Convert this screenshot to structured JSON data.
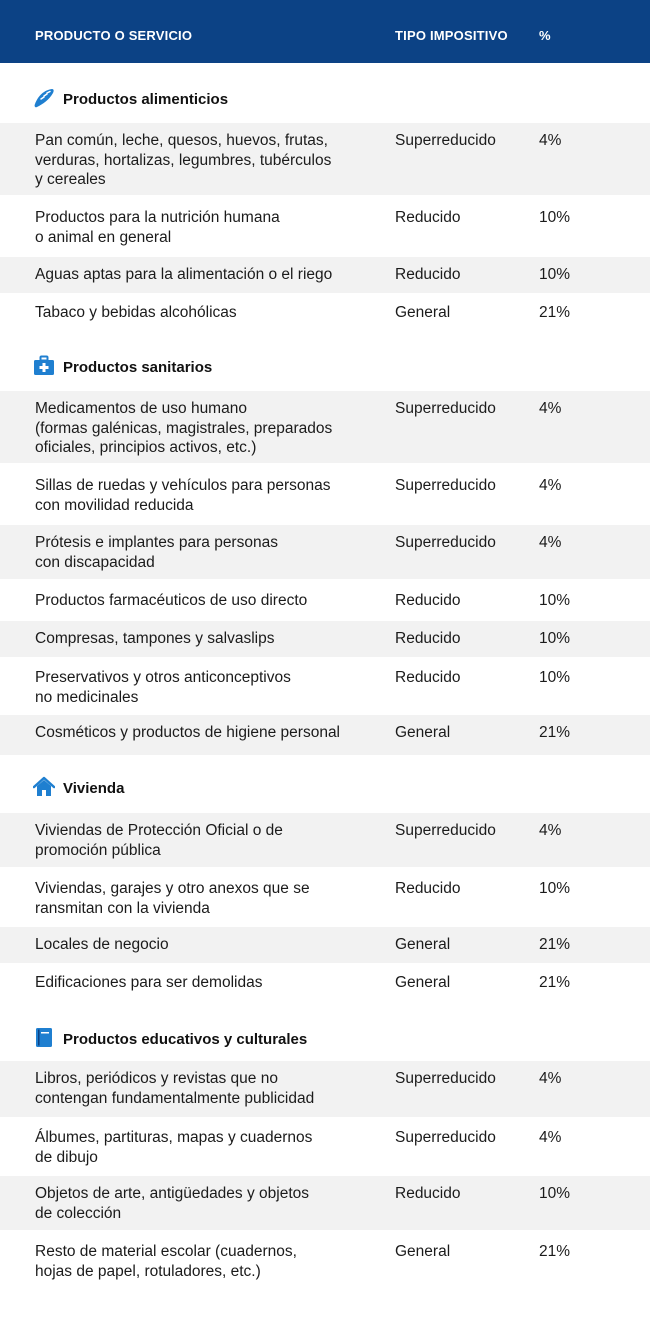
{
  "header": {
    "col1": "PRODUCTO O SERVICIO",
    "col2": "TIPO IMPOSITIVO",
    "col3": "%"
  },
  "colors": {
    "header_bg": "#0c4285",
    "icon": "#1f7fd0",
    "shade": "#f2f2f2"
  },
  "sections": [
    {
      "title": "Productos alimenticios",
      "icon": "baguette-icon",
      "rows": [
        {
          "product": "Pan común, leche, quesos, huevos, frutas,\nverduras, hortalizas, legumbres, tubérculos\ny cereales",
          "type": "Superreducido",
          "pct": "4%"
        },
        {
          "product": "Productos para la nutrición humana\no animal en general",
          "type": "Reducido",
          "pct": "10%"
        },
        {
          "product": "Aguas aptas para la alimentación o el riego",
          "type": "Reducido",
          "pct": "10%"
        },
        {
          "product": "Tabaco y bebidas alcohólicas",
          "type": "General",
          "pct": "21%"
        }
      ]
    },
    {
      "title": "Productos sanitarios",
      "icon": "medical-kit-icon",
      "rows": [
        {
          "product": "Medicamentos de uso humano\n(formas galénicas, magistrales, preparados\noficiales, principios activos, etc.)",
          "type": "Superreducido",
          "pct": "4%"
        },
        {
          "product": "Sillas de ruedas y vehículos para personas\ncon movilidad reducida",
          "type": "Superreducido",
          "pct": "4%"
        },
        {
          "product": "Prótesis e implantes para personas\ncon discapacidad",
          "type": "Superreducido",
          "pct": "4%"
        },
        {
          "product": "Productos farmacéuticos de uso directo",
          "type": "Reducido",
          "pct": "10%"
        },
        {
          "product": "Compresas, tampones y salvaslips",
          "type": "Reducido",
          "pct": "10%"
        },
        {
          "product": "Preservativos y otros anticonceptivos\nno medicinales",
          "type": "Reducido",
          "pct": "10%"
        },
        {
          "product": "Cosméticos y productos de higiene personal",
          "type": "General",
          "pct": "21%"
        }
      ]
    },
    {
      "title": "Vivienda",
      "icon": "house-icon",
      "rows": [
        {
          "product": "Viviendas de Protección Oficial o de\npromoción pública",
          "type": "Superreducido",
          "pct": "4%"
        },
        {
          "product": "Viviendas, garajes y otro anexos que se\nransmitan con la vivienda",
          "type": "Reducido",
          "pct": "10%"
        },
        {
          "product": "Locales de negocio",
          "type": "General",
          "pct": "21%"
        },
        {
          "product": "Edificaciones para ser demolidas",
          "type": "General",
          "pct": "21%"
        }
      ]
    },
    {
      "title": "Productos educativos y culturales",
      "icon": "book-icon",
      "rows": [
        {
          "product": "Libros, periódicos y revistas que no\ncontengan fundamentalmente publicidad",
          "type": "Superreducido",
          "pct": "4%"
        },
        {
          "product": "Álbumes, partituras, mapas y cuadernos\nde dibujo",
          "type": "Superreducido",
          "pct": "4%"
        },
        {
          "product": "Objetos de arte, antigüedades y objetos\nde colección",
          "type": "Reducido",
          "pct": "10%"
        },
        {
          "product": "Resto de material escolar (cuadernos,\nhojas de papel, rotuladores, etc.)",
          "type": "General",
          "pct": "21%"
        }
      ]
    }
  ]
}
